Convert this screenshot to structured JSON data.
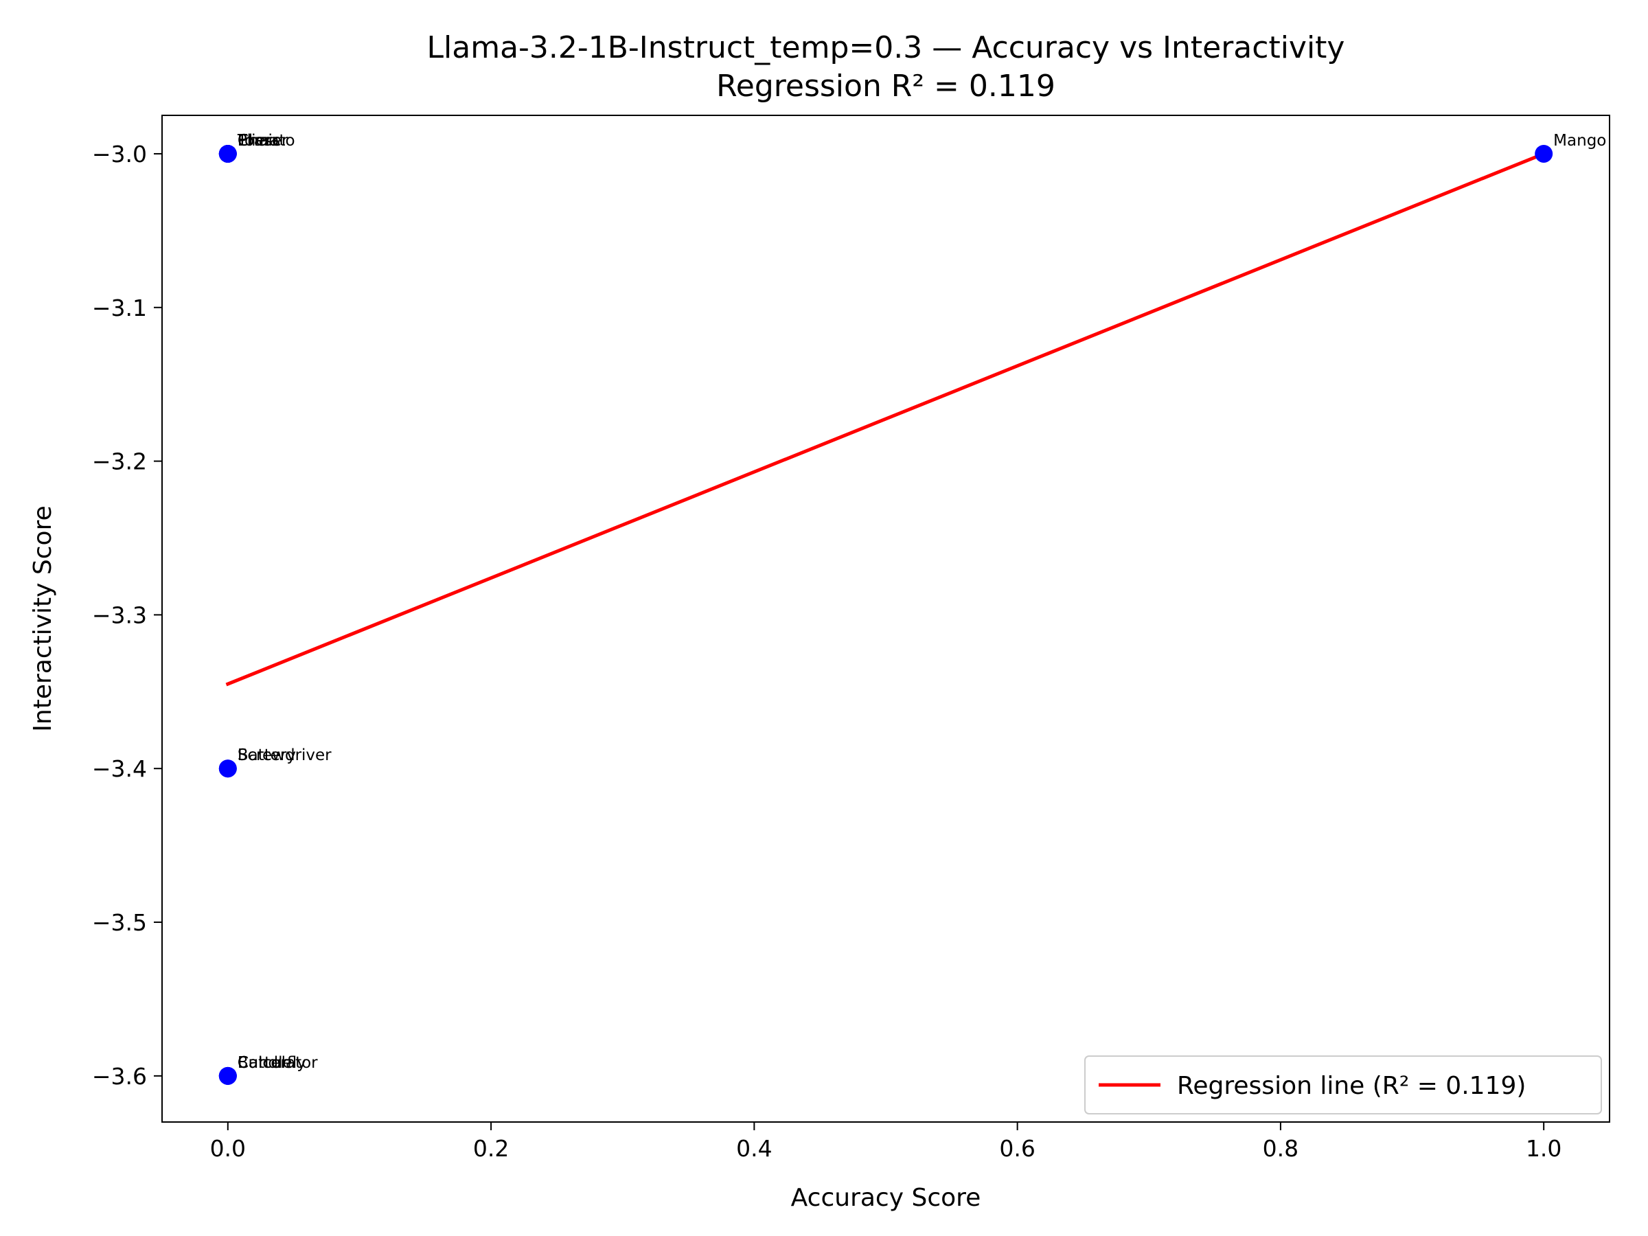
{
  "chart_data": {
    "type": "scatter",
    "title": "Llama-3.2-1B-Instruct_temp=0.3 — Accuracy vs Interactivity",
    "subtitle": "Regression R² = 0.119",
    "xlabel": "Accuracy Score",
    "ylabel": "Interactivity Score",
    "xlim": [
      -0.05,
      1.05
    ],
    "ylim": [
      -3.63,
      -2.975
    ],
    "x_ticks": [
      0.0,
      0.2,
      0.4,
      0.6,
      0.8,
      1.0
    ],
    "x_tick_labels": [
      "0.0",
      "0.2",
      "0.4",
      "0.6",
      "0.8",
      "1.0"
    ],
    "y_ticks": [
      -3.0,
      -3.1,
      -3.2,
      -3.3,
      -3.4,
      -3.5,
      -3.6
    ],
    "y_tick_labels": [
      "−3.0",
      "−3.1",
      "−3.2",
      "−3.3",
      "−3.4",
      "−3.5",
      "−3.6"
    ],
    "grid": false,
    "points": [
      {
        "label": "Tomato",
        "x": 0.0,
        "y": -3.0
      },
      {
        "label": "Pliers",
        "x": 0.0,
        "y": -3.0
      },
      {
        "label": "Eraser",
        "x": 0.0,
        "y": -3.0
      },
      {
        "label": "Chair",
        "x": 0.0,
        "y": -3.0
      },
      {
        "label": "Screwdriver",
        "x": 0.0,
        "y": -3.4
      },
      {
        "label": "Battery",
        "x": 0.0,
        "y": -3.4
      },
      {
        "label": "Calculator",
        "x": 0.0,
        "y": -3.6
      },
      {
        "label": "Candle",
        "x": 0.0,
        "y": -3.6
      },
      {
        "label": "Butterfly",
        "x": 0.0,
        "y": -3.6
      },
      {
        "label": "Mango",
        "x": 1.0,
        "y": -3.0
      }
    ],
    "regression": {
      "name": "Regression line (R² = 0.119)",
      "x": [
        0.0,
        1.0
      ],
      "y": [
        -3.345,
        -3.0
      ]
    },
    "legend_position": "lower-right",
    "colors": {
      "points": "#0000ff",
      "regression": "#ff0000"
    }
  }
}
